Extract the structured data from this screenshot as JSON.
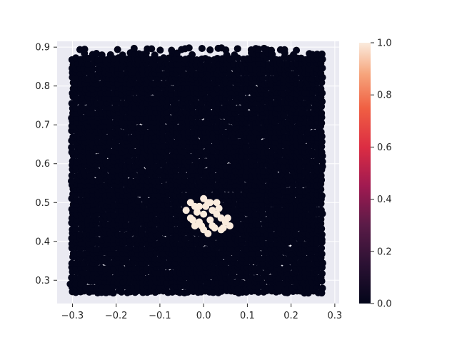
{
  "chart_data": {
    "type": "scatter",
    "title": "",
    "xlabel": "",
    "ylabel": "",
    "xlim": [
      -0.335,
      0.31
    ],
    "ylim": [
      0.24,
      0.915
    ],
    "x_ticks": [
      -0.3,
      -0.2,
      -0.1,
      0.0,
      0.1,
      0.2,
      0.3
    ],
    "x_tick_labels": [
      "−0.3",
      "−0.2",
      "−0.1",
      "0.0",
      "0.1",
      "0.2",
      "0.3"
    ],
    "y_ticks": [
      0.3,
      0.4,
      0.5,
      0.6,
      0.7,
      0.8,
      0.9
    ],
    "y_tick_labels": [
      "0.3",
      "0.4",
      "0.5",
      "0.6",
      "0.7",
      "0.8",
      "0.9"
    ],
    "grid": true,
    "background_color": "#eaeaf2",
    "colormap": "rocket",
    "colorbar": {
      "range": [
        0.0,
        1.0
      ],
      "ticks": [
        0.0,
        0.2,
        0.4,
        0.6,
        0.8,
        1.0
      ],
      "tick_labels": [
        "0.0",
        "0.2",
        "0.4",
        "0.6",
        "0.8",
        "1.0"
      ]
    },
    "series": [
      {
        "value": 0,
        "color": "#03051a",
        "description_region": "dense square grid of points",
        "x_range": [
          -0.3,
          0.275
        ],
        "y_range": [
          0.27,
          0.9
        ]
      },
      {
        "value": 1,
        "color": "#faebdd",
        "points": [
          [
            -0.04,
            0.48
          ],
          [
            -0.03,
            0.46
          ],
          [
            -0.02,
            0.49
          ],
          [
            -0.01,
            0.45
          ],
          [
            0.0,
            0.47
          ],
          [
            0.01,
            0.5
          ],
          [
            0.02,
            0.44
          ],
          [
            0.03,
            0.47
          ],
          [
            0.04,
            0.43
          ],
          [
            0.05,
            0.45
          ],
          [
            0.0,
            0.43
          ],
          [
            -0.02,
            0.44
          ],
          [
            0.01,
            0.42
          ],
          [
            0.03,
            0.5
          ],
          [
            0.02,
            0.48
          ],
          [
            -0.01,
            0.49
          ],
          [
            0.06,
            0.44
          ],
          [
            -0.03,
            0.5
          ],
          [
            0.04,
            0.46
          ],
          [
            0.0,
            0.51
          ],
          [
            0.015,
            0.455
          ],
          [
            -0.015,
            0.475
          ],
          [
            0.025,
            0.435
          ],
          [
            0.035,
            0.485
          ],
          [
            0.055,
            0.46
          ],
          [
            -0.005,
            0.44
          ],
          [
            0.005,
            0.49
          ],
          [
            -0.025,
            0.455
          ],
          [
            0.045,
            0.435
          ],
          [
            0.015,
            0.5
          ]
        ]
      }
    ]
  }
}
